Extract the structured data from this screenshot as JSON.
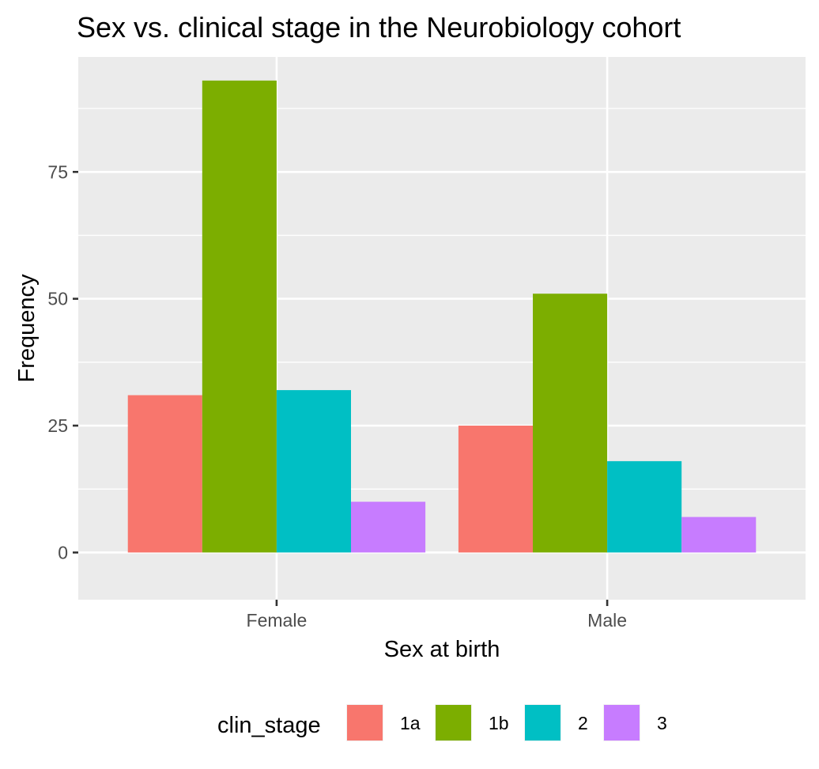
{
  "chart_data": {
    "type": "bar",
    "title": "Sex vs. clinical stage in the Neurobiology cohort",
    "xlabel": "Sex at birth",
    "ylabel": "Frequency",
    "categories": [
      "Female",
      "Male"
    ],
    "series": [
      {
        "name": "1a",
        "color": "#F8766D",
        "values": [
          31,
          25
        ]
      },
      {
        "name": "1b",
        "color": "#7CAE00",
        "values": [
          93,
          51
        ]
      },
      {
        "name": "2",
        "color": "#00BFC4",
        "values": [
          32,
          18
        ]
      },
      {
        "name": "3",
        "color": "#C77CFF",
        "values": [
          10,
          7
        ]
      }
    ],
    "ylim": [
      -9.3,
      97.65
    ],
    "y_ticks": [
      0,
      25,
      50,
      75
    ],
    "y_tick_labels": [
      "0",
      "25",
      "50",
      "75"
    ],
    "grid": true,
    "legend": {
      "title": "clin_stage",
      "position": "bottom"
    },
    "panel_background": "#EBEBEB"
  }
}
